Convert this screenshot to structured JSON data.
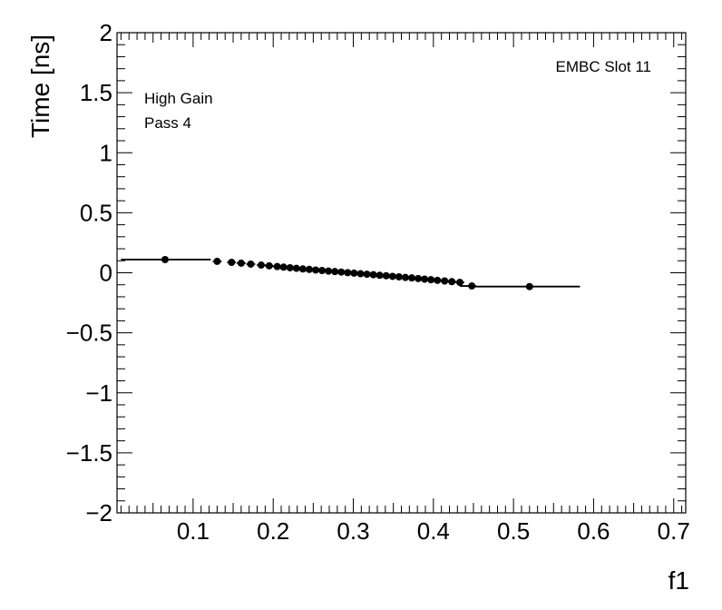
{
  "chart_data": {
    "type": "scatter",
    "title": "",
    "xlabel": "f1",
    "ylabel": "Time [ns]",
    "xlim": [
      0.005,
      0.715
    ],
    "ylim": [
      -2,
      2
    ],
    "x_ticks": [
      0.1,
      0.2,
      0.3,
      0.4,
      0.5,
      0.6,
      0.7
    ],
    "x_tick_labels": [
      "0.1",
      "0.2",
      "0.3",
      "0.4",
      "0.5",
      "0.6",
      "0.7"
    ],
    "y_ticks": [
      -2,
      -1.5,
      -1,
      -0.5,
      0,
      0.5,
      1,
      1.5,
      2
    ],
    "y_tick_labels": [
      "−2",
      "−1.5",
      "−1",
      "−0.5",
      "0",
      "0.5",
      "1",
      "1.5",
      "2"
    ],
    "grid": false,
    "annotations": [
      "EMBC Slot 11",
      "High Gain",
      "Pass 4"
    ],
    "series": [
      {
        "points": [
          {
            "x": 0.065,
            "y": 0.11,
            "xerr": [
              0.01,
              0.122
            ]
          },
          {
            "x": 0.13,
            "y": 0.095
          },
          {
            "x": 0.148,
            "y": 0.087
          },
          {
            "x": 0.16,
            "y": 0.08
          },
          {
            "x": 0.172,
            "y": 0.072
          },
          {
            "x": 0.185,
            "y": 0.064
          },
          {
            "x": 0.195,
            "y": 0.058
          },
          {
            "x": 0.205,
            "y": 0.052
          },
          {
            "x": 0.213,
            "y": 0.047
          },
          {
            "x": 0.221,
            "y": 0.042
          },
          {
            "x": 0.229,
            "y": 0.037
          },
          {
            "x": 0.237,
            "y": 0.032
          },
          {
            "x": 0.245,
            "y": 0.028
          },
          {
            "x": 0.253,
            "y": 0.023
          },
          {
            "x": 0.261,
            "y": 0.019
          },
          {
            "x": 0.269,
            "y": 0.014
          },
          {
            "x": 0.277,
            "y": 0.01
          },
          {
            "x": 0.285,
            "y": 0.006
          },
          {
            "x": 0.293,
            "y": 0.001
          },
          {
            "x": 0.301,
            "y": -0.003
          },
          {
            "x": 0.309,
            "y": -0.008
          },
          {
            "x": 0.317,
            "y": -0.012
          },
          {
            "x": 0.325,
            "y": -0.016
          },
          {
            "x": 0.333,
            "y": -0.021
          },
          {
            "x": 0.341,
            "y": -0.025
          },
          {
            "x": 0.349,
            "y": -0.03
          },
          {
            "x": 0.357,
            "y": -0.034
          },
          {
            "x": 0.365,
            "y": -0.039
          },
          {
            "x": 0.373,
            "y": -0.043
          },
          {
            "x": 0.381,
            "y": -0.048
          },
          {
            "x": 0.389,
            "y": -0.053
          },
          {
            "x": 0.397,
            "y": -0.058
          },
          {
            "x": 0.405,
            "y": -0.063
          },
          {
            "x": 0.414,
            "y": -0.068
          },
          {
            "x": 0.423,
            "y": -0.074
          },
          {
            "x": 0.433,
            "y": -0.08
          },
          {
            "x": 0.448,
            "y": -0.11,
            "xerr": [
              0.433,
              0.452
            ]
          },
          {
            "x": 0.52,
            "y": -0.115,
            "xerr": [
              0.452,
              0.583
            ]
          }
        ]
      }
    ]
  }
}
